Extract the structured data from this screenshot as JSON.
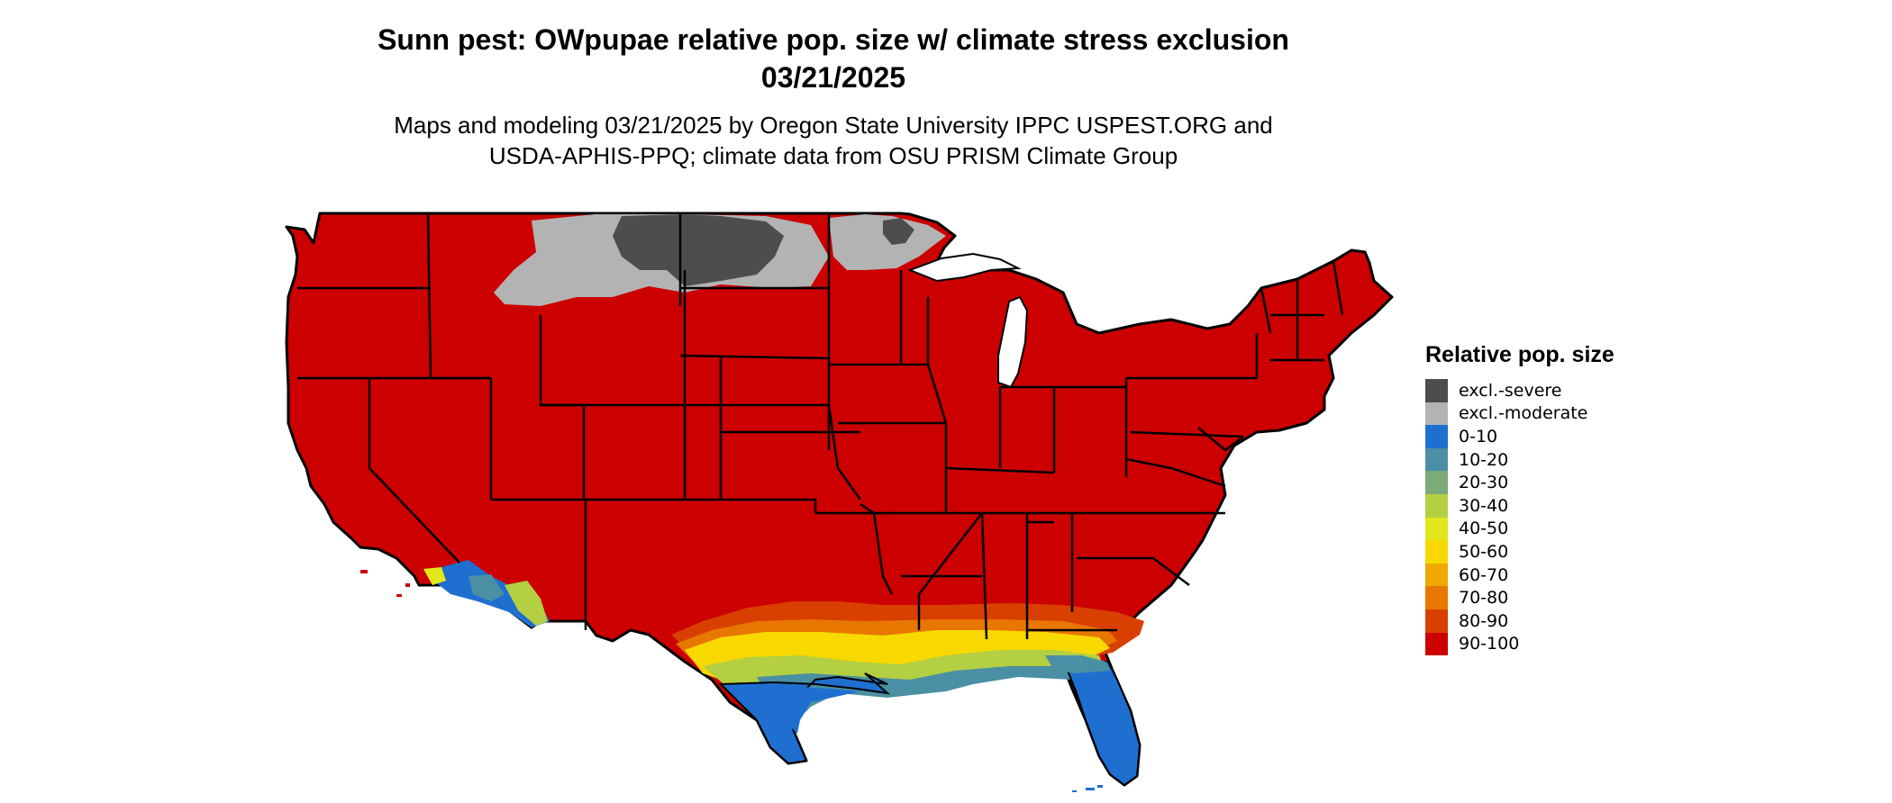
{
  "title": {
    "line1": "Sunn pest: OWpupae relative pop. size w/ climate stress exclusion",
    "line2": "03/21/2025"
  },
  "subtitle": {
    "line1": "Maps and modeling 03/21/2025 by Oregon State University IPPC USPEST.ORG and",
    "line2": "USDA-APHIS-PPQ; climate data from OSU PRISM Climate Group"
  },
  "legend": {
    "title": "Relative pop. size",
    "items": [
      {
        "label": "excl.-severe",
        "color": "#4d4d4d"
      },
      {
        "label": "excl.-moderate",
        "color": "#b3b3b3"
      },
      {
        "label": "0-10",
        "color": "#1f6fd1"
      },
      {
        "label": "10-20",
        "color": "#4a8fa3"
      },
      {
        "label": "20-30",
        "color": "#7aab78"
      },
      {
        "label": "30-40",
        "color": "#b4cf42"
      },
      {
        "label": "40-50",
        "color": "#e2e81a"
      },
      {
        "label": "50-60",
        "color": "#f7d900"
      },
      {
        "label": "60-70",
        "color": "#f0a800"
      },
      {
        "label": "70-80",
        "color": "#e87700"
      },
      {
        "label": "80-90",
        "color": "#d94000"
      },
      {
        "label": "90-100",
        "color": "#cc0000"
      }
    ]
  },
  "map": {
    "region": "Contiguous United States",
    "dominant_class": "90-100",
    "border_color": "#000000"
  }
}
